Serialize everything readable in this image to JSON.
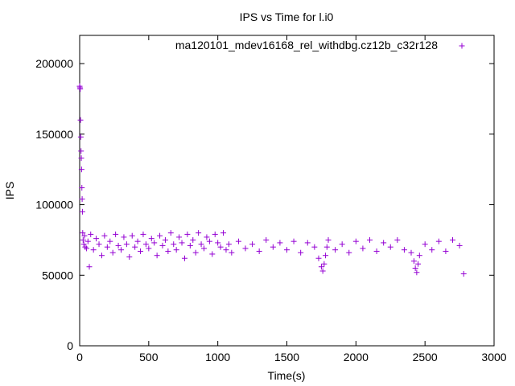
{
  "chart_data": {
    "type": "scatter",
    "title": "IPS vs Time for l.i0",
    "xlabel": "Time(s)",
    "ylabel": "IPS",
    "xlim": [
      0,
      3000
    ],
    "ylim": [
      0,
      220000
    ],
    "x_ticks": [
      0,
      500,
      1000,
      1500,
      2000,
      2500,
      3000
    ],
    "x_tick_labels": [
      "0",
      "500",
      "1000",
      "1500",
      "2000",
      "2500",
      "3000"
    ],
    "y_ticks": [
      0,
      50000,
      100000,
      150000,
      200000
    ],
    "y_tick_labels": [
      "0",
      "50000",
      "100000",
      "150000",
      "200000"
    ],
    "grid": false,
    "legend_position": "top-right",
    "series": [
      {
        "name": "ma120101_mdev16168_rel_withdbg.cz12b_c32r128",
        "color": "#9400d3",
        "marker": "plus",
        "x": [
          0,
          2,
          4,
          6,
          8,
          10,
          12,
          14,
          16,
          18,
          20,
          22,
          25,
          30,
          35,
          40,
          50,
          60,
          70,
          80,
          100,
          120,
          140,
          160,
          180,
          200,
          220,
          240,
          260,
          280,
          300,
          320,
          340,
          360,
          380,
          400,
          420,
          440,
          460,
          480,
          500,
          520,
          540,
          560,
          580,
          600,
          620,
          640,
          660,
          680,
          700,
          720,
          740,
          760,
          780,
          800,
          820,
          840,
          860,
          880,
          900,
          920,
          940,
          960,
          980,
          1000,
          1020,
          1040,
          1060,
          1080,
          1100,
          1150,
          1200,
          1250,
          1300,
          1350,
          1400,
          1450,
          1500,
          1550,
          1600,
          1650,
          1700,
          1730,
          1750,
          1760,
          1770,
          1780,
          1790,
          1800,
          1850,
          1900,
          1950,
          2000,
          2050,
          2100,
          2150,
          2200,
          2250,
          2300,
          2350,
          2400,
          2420,
          2430,
          2440,
          2450,
          2460,
          2500,
          2550,
          2600,
          2650,
          2700,
          2750,
          2780
        ],
        "y": [
          184000,
          183000,
          182000,
          160000,
          148000,
          138000,
          133000,
          125000,
          112000,
          104000,
          95000,
          80000,
          75000,
          72000,
          78000,
          70000,
          69000,
          74000,
          56000,
          79000,
          68000,
          76000,
          72000,
          64000,
          78000,
          70000,
          74000,
          66000,
          79000,
          71000,
          68000,
          77000,
          72000,
          63000,
          78000,
          70000,
          74000,
          67000,
          79000,
          72000,
          69000,
          76000,
          73000,
          64000,
          78000,
          71000,
          75000,
          67000,
          80000,
          72000,
          68000,
          77000,
          73000,
          62000,
          79000,
          71000,
          75000,
          66000,
          80000,
          72000,
          69000,
          77000,
          74000,
          65000,
          79000,
          73000,
          70000,
          80000,
          68000,
          72000,
          66000,
          74000,
          69000,
          72000,
          67000,
          75000,
          70000,
          73000,
          68000,
          74000,
          66000,
          73000,
          70000,
          62000,
          56000,
          53000,
          58000,
          64000,
          70000,
          75000,
          68000,
          72000,
          66000,
          74000,
          69000,
          75000,
          67000,
          73000,
          70000,
          75000,
          68000,
          66000,
          60000,
          55000,
          52000,
          58000,
          64000,
          72000,
          68000,
          74000,
          67000,
          75000,
          71000,
          51000
        ]
      }
    ]
  }
}
